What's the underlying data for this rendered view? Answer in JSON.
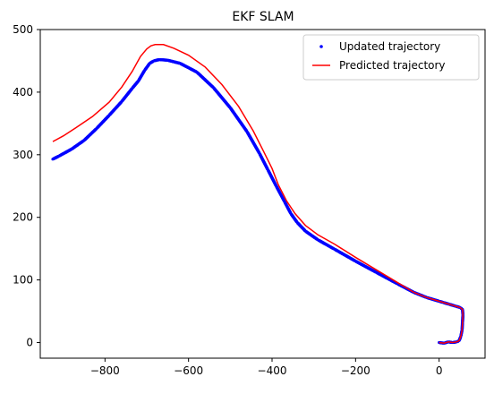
{
  "chart_data": {
    "type": "scatter",
    "title": "EKF SLAM",
    "xlabel": "",
    "ylabel": "",
    "xlim": [
      -955,
      110
    ],
    "ylim": [
      -25,
      500
    ],
    "xticks": [
      -800,
      -600,
      -400,
      -200,
      0
    ],
    "yticks": [
      0,
      100,
      200,
      300,
      400,
      500
    ],
    "grid": false,
    "legend": {
      "position": "top-right",
      "entries": [
        "Updated trajectory",
        "Predicted trajectory"
      ]
    },
    "series": [
      {
        "name": "Updated trajectory",
        "type": "scatter",
        "color": "#0000ff",
        "points": [
          [
            0,
            0
          ],
          [
            12,
            -1
          ],
          [
            22,
            1
          ],
          [
            32,
            0
          ],
          [
            42,
            1
          ],
          [
            48,
            3
          ],
          [
            52,
            10
          ],
          [
            55,
            20
          ],
          [
            56,
            32
          ],
          [
            57,
            44
          ],
          [
            56,
            53
          ],
          [
            50,
            56
          ],
          [
            40,
            58
          ],
          [
            25,
            61
          ],
          [
            10,
            64
          ],
          [
            0,
            66
          ],
          [
            -30,
            72
          ],
          [
            -60,
            80
          ],
          [
            -100,
            94
          ],
          [
            -150,
            112
          ],
          [
            -200,
            130
          ],
          [
            -250,
            149
          ],
          [
            -290,
            164
          ],
          [
            -320,
            178
          ],
          [
            -340,
            192
          ],
          [
            -355,
            206
          ],
          [
            -370,
            225
          ],
          [
            -390,
            250
          ],
          [
            -410,
            276
          ],
          [
            -430,
            302
          ],
          [
            -460,
            337
          ],
          [
            -500,
            375
          ],
          [
            -540,
            407
          ],
          [
            -580,
            432
          ],
          [
            -620,
            446
          ],
          [
            -650,
            451
          ],
          [
            -670,
            452
          ],
          [
            -683,
            450
          ],
          [
            -693,
            446
          ],
          [
            -705,
            435
          ],
          [
            -720,
            418
          ],
          [
            -735,
            406
          ],
          [
            -760,
            385
          ],
          [
            -790,
            363
          ],
          [
            -820,
            342
          ],
          [
            -850,
            323
          ],
          [
            -880,
            309
          ],
          [
            -910,
            298
          ],
          [
            -925,
            293
          ]
        ]
      },
      {
        "name": "Predicted trajectory",
        "type": "line",
        "color": "#ff0000",
        "points": [
          [
            0,
            0
          ],
          [
            12,
            -1
          ],
          [
            22,
            1
          ],
          [
            32,
            0
          ],
          [
            42,
            1
          ],
          [
            48,
            3
          ],
          [
            52,
            10
          ],
          [
            55,
            20
          ],
          [
            56,
            32
          ],
          [
            57,
            44
          ],
          [
            56,
            53
          ],
          [
            50,
            56
          ],
          [
            40,
            58
          ],
          [
            25,
            61
          ],
          [
            10,
            64
          ],
          [
            0,
            66
          ],
          [
            -30,
            72
          ],
          [
            -60,
            80
          ],
          [
            -100,
            96
          ],
          [
            -150,
            116
          ],
          [
            -200,
            136
          ],
          [
            -250,
            157
          ],
          [
            -290,
            172
          ],
          [
            -320,
            187
          ],
          [
            -345,
            206
          ],
          [
            -365,
            226
          ],
          [
            -385,
            252
          ],
          [
            -400,
            278
          ],
          [
            -420,
            305
          ],
          [
            -445,
            338
          ],
          [
            -480,
            377
          ],
          [
            -520,
            412
          ],
          [
            -560,
            440
          ],
          [
            -600,
            459
          ],
          [
            -635,
            470
          ],
          [
            -660,
            476
          ],
          [
            -680,
            476
          ],
          [
            -690,
            474
          ],
          [
            -700,
            469
          ],
          [
            -715,
            457
          ],
          [
            -735,
            433
          ],
          [
            -760,
            408
          ],
          [
            -790,
            384
          ],
          [
            -830,
            361
          ],
          [
            -870,
            343
          ],
          [
            -900,
            330
          ],
          [
            -925,
            321
          ]
        ]
      }
    ]
  }
}
